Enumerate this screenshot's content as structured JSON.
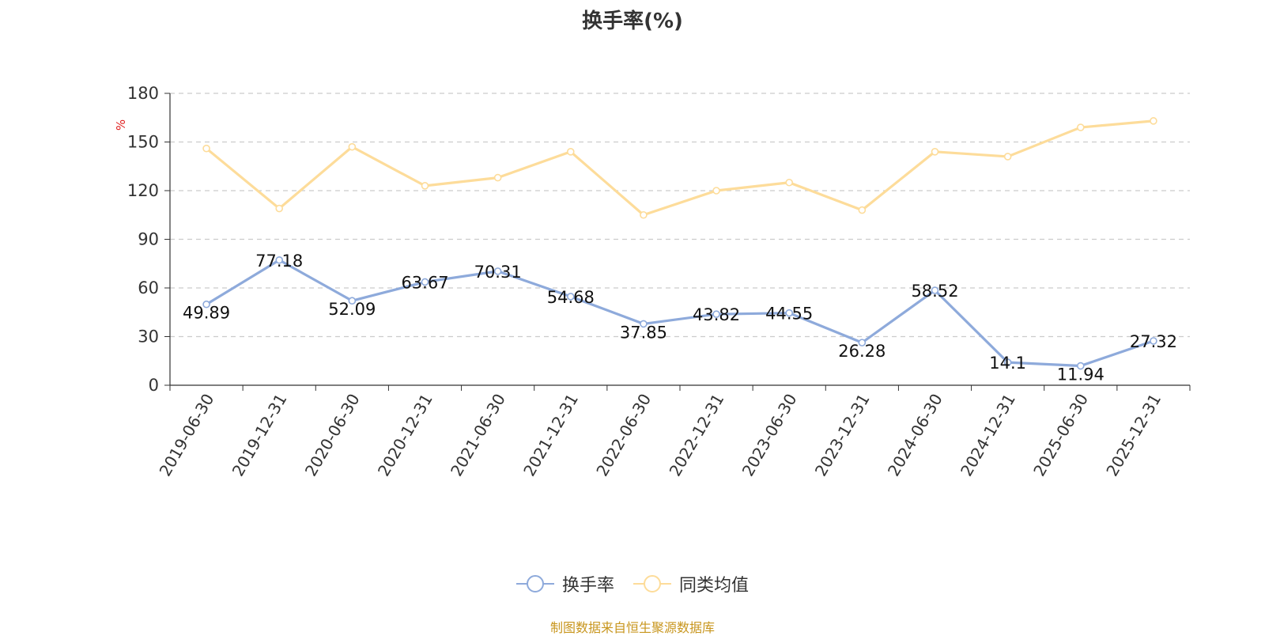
{
  "title": "换手率(%)",
  "source_note": "制图数据来自恒生聚源数据库",
  "chart_data": {
    "type": "line",
    "title": "换手率(%)",
    "ylabel": "%",
    "ylim": [
      0,
      180
    ],
    "yticks": [
      0,
      30,
      60,
      90,
      120,
      150,
      180
    ],
    "grid": true,
    "legend_position": "bottom-center",
    "categories": [
      "2019-06-30",
      "2019-12-31",
      "2020-06-30",
      "2020-12-31",
      "2021-06-30",
      "2021-12-31",
      "2022-06-30",
      "2022-12-31",
      "2023-06-30",
      "2023-12-31",
      "2024-06-30",
      "2024-12-31",
      "2025-06-30",
      "2025-12-31"
    ],
    "series": [
      {
        "name": "换手率",
        "color": "#8eaadb",
        "show_labels": true,
        "values": [
          49.89,
          77.18,
          52.09,
          63.67,
          70.31,
          54.68,
          37.85,
          43.82,
          44.55,
          26.28,
          58.52,
          14.1,
          11.94,
          27.32
        ]
      },
      {
        "name": "同类均值",
        "color": "#fddc9a",
        "show_labels": false,
        "values": [
          146,
          109,
          147,
          123,
          128,
          144,
          105,
          120,
          125,
          108,
          144,
          141,
          159,
          163
        ]
      }
    ]
  }
}
